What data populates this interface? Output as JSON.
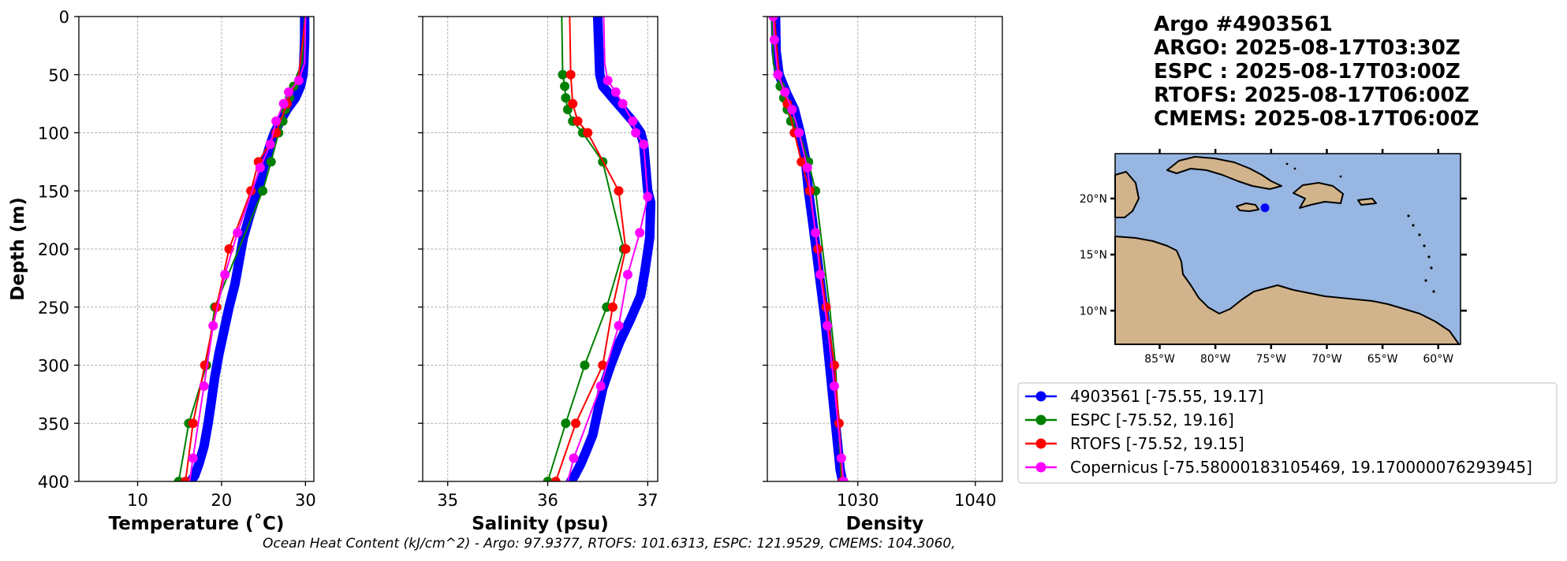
{
  "header": {
    "lines": [
      "Argo #4903561",
      "ARGO: 2025-08-17T03:30Z",
      "ESPC : 2025-08-17T03:00Z",
      "RTOFS: 2025-08-17T06:00Z",
      "CMEMS: 2025-08-17T06:00Z"
    ]
  },
  "footer": {
    "ohc_text": "Ocean Heat Content (kJ/cm^2) - Argo: 97.9377,  RTOFS: 101.6313,  ESPC: 121.9529,  CMEMS: 104.3060,"
  },
  "colors": {
    "argo": "#0000ff",
    "espc": "#008000",
    "rtofs": "#ff0000",
    "copernicus": "#ff00ff",
    "ocean": "#97b6e1",
    "land": "#d2b48c"
  },
  "chart_data": [
    {
      "type": "line",
      "id": "temperature",
      "xlabel": "Temperature (˚C)",
      "ylabel": "Depth (m)",
      "xlim": [
        3,
        31
      ],
      "ylim": [
        400,
        0
      ],
      "xticks": [
        10,
        20,
        30
      ],
      "yticks": [
        0,
        50,
        100,
        150,
        200,
        250,
        300,
        350,
        400
      ],
      "grid": true,
      "series": [
        {
          "name": "argo",
          "color": "#0000ff",
          "dense": true,
          "x": [
            29.9,
            29.9,
            29.8,
            29.7,
            29.4,
            28.8,
            27.8,
            27.0,
            26.3,
            25.8,
            25.0,
            24.3,
            23.4,
            22.6,
            22.1,
            21.6,
            20.9,
            20.3,
            19.7,
            19.2,
            18.8,
            18.4,
            17.9,
            17.3,
            16.8,
            16.3
          ],
          "y": [
            0,
            20,
            40,
            50,
            60,
            70,
            80,
            90,
            100,
            110,
            130,
            150,
            170,
            190,
            210,
            230,
            250,
            270,
            290,
            310,
            330,
            350,
            370,
            385,
            395,
            400
          ]
        },
        {
          "name": "espc",
          "color": "#008000",
          "x": [
            29.9,
            29.6,
            29.0,
            28.6,
            28.1,
            27.6,
            27.3,
            26.8,
            25.9,
            24.9,
            19.2,
            18.2,
            16.1,
            14.9
          ],
          "y": [
            0,
            40,
            50,
            60,
            70,
            80,
            90,
            100,
            125,
            150,
            250,
            300,
            350,
            400
          ],
          "marker_idx": [
            3,
            4,
            5,
            6,
            7,
            8,
            9,
            10,
            11,
            12,
            13
          ]
        },
        {
          "name": "rtofs",
          "color": "#ff0000",
          "x": [
            30.0,
            29.2,
            27.8,
            26.5,
            24.4,
            23.5,
            20.9,
            19.4,
            18.0,
            16.6,
            15.7
          ],
          "y": [
            0,
            50,
            75,
            100,
            125,
            150,
            200,
            250,
            300,
            350,
            400
          ],
          "marker_idx": [
            2,
            3,
            4,
            5,
            6,
            7,
            8,
            9,
            10
          ]
        },
        {
          "name": "copernicus",
          "color": "#ff00ff",
          "x": [
            30.0,
            29.9,
            29.2,
            28.0,
            27.4,
            26.5,
            25.8,
            24.6,
            21.9,
            20.4,
            19.0,
            17.9,
            16.6,
            16.2
          ],
          "y": [
            0,
            40,
            55,
            65,
            75,
            90,
            110,
            130,
            186,
            222,
            266,
            318,
            380,
            400
          ],
          "marker_idx": [
            2,
            3,
            4,
            5,
            6,
            7,
            8,
            9,
            10,
            11,
            12
          ]
        }
      ]
    },
    {
      "type": "line",
      "id": "salinity",
      "xlabel": "Salinity (psu)",
      "xlim": [
        34.75,
        37.1
      ],
      "ylim": [
        400,
        0
      ],
      "xticks": [
        35,
        36,
        37
      ],
      "grid": true,
      "series": [
        {
          "name": "argo",
          "color": "#0000ff",
          "dense": true,
          "x": [
            36.5,
            36.51,
            36.52,
            36.55,
            36.65,
            36.75,
            36.85,
            36.93,
            36.96,
            36.98,
            37.0,
            37.03,
            37.02,
            36.97,
            36.93,
            36.83,
            36.72,
            36.63,
            36.55,
            36.5,
            36.45,
            36.38,
            36.33,
            36.27,
            36.23
          ],
          "y": [
            0,
            25,
            50,
            60,
            70,
            80,
            90,
            100,
            110,
            130,
            150,
            160,
            190,
            220,
            240,
            260,
            280,
            300,
            320,
            340,
            360,
            375,
            385,
            395,
            400
          ]
        },
        {
          "name": "espc",
          "color": "#008000",
          "x": [
            36.14,
            36.15,
            36.17,
            36.18,
            36.2,
            36.25,
            36.35,
            36.55,
            36.76,
            36.59,
            36.37,
            36.18,
            36.0
          ],
          "y": [
            0,
            50,
            60,
            70,
            80,
            90,
            100,
            125,
            200,
            250,
            300,
            350,
            400
          ],
          "marker_idx": [
            1,
            2,
            3,
            4,
            5,
            6,
            7,
            8,
            9,
            10,
            11,
            12
          ]
        },
        {
          "name": "rtofs",
          "color": "#ff0000",
          "x": [
            36.22,
            36.23,
            36.25,
            36.3,
            36.4,
            36.71,
            36.78,
            36.65,
            36.55,
            36.28,
            36.08
          ],
          "y": [
            0,
            50,
            75,
            90,
            100,
            150,
            200,
            250,
            300,
            350,
            400
          ],
          "marker_idx": [
            1,
            2,
            3,
            4,
            5,
            6,
            7,
            8,
            9,
            10
          ]
        },
        {
          "name": "copernicus",
          "color": "#ff00ff",
          "x": [
            36.56,
            36.57,
            36.6,
            36.68,
            36.75,
            36.85,
            36.88,
            36.96,
            37.0,
            36.92,
            36.8,
            36.71,
            36.53,
            36.26,
            36.2
          ],
          "y": [
            0,
            40,
            55,
            65,
            75,
            90,
            100,
            110,
            155,
            186,
            222,
            266,
            318,
            380,
            400
          ],
          "marker_idx": [
            2,
            3,
            4,
            5,
            6,
            7,
            8,
            9,
            10,
            11,
            12,
            13
          ]
        }
      ]
    },
    {
      "type": "line",
      "id": "density",
      "xlabel": "Density",
      "xlim": [
        1022.3,
        1042.3
      ],
      "ylim": [
        400,
        0
      ],
      "xticks": [
        1030,
        1040
      ],
      "grid": true,
      "series": [
        {
          "name": "argo",
          "color": "#0000ff",
          "dense": true,
          "x": [
            1023.0,
            1023.05,
            1023.3,
            1023.9,
            1024.6,
            1025.1,
            1025.5,
            1025.8,
            1026.2,
            1026.7,
            1027.2,
            1027.6,
            1027.9,
            1028.2,
            1028.5,
            1028.7
          ],
          "y": [
            0,
            30,
            50,
            65,
            80,
            100,
            120,
            150,
            180,
            220,
            260,
            300,
            330,
            360,
            390,
            400
          ]
        },
        {
          "name": "espc",
          "color": "#008000",
          "x": [
            1022.7,
            1022.8,
            1023.1,
            1023.4,
            1023.7,
            1024.0,
            1024.3,
            1025.0,
            1025.8,
            1026.4,
            1027.0,
            1027.6,
            1028.1,
            1028.6
          ],
          "y": [
            0,
            40,
            50,
            60,
            70,
            80,
            90,
            100,
            125,
            150,
            200,
            250,
            300,
            400
          ],
          "marker_idx": [
            3,
            4,
            5,
            6,
            7,
            8,
            9
          ]
        },
        {
          "name": "rtofs",
          "color": "#ff0000",
          "x": [
            1022.9,
            1023.3,
            1024.0,
            1024.6,
            1025.2,
            1025.9,
            1026.6,
            1027.3,
            1028.0,
            1028.4,
            1028.7
          ],
          "y": [
            0,
            50,
            75,
            100,
            125,
            150,
            200,
            250,
            300,
            350,
            400
          ],
          "marker_idx": [
            2,
            3,
            4,
            5,
            6,
            7,
            8,
            9,
            10
          ]
        },
        {
          "name": "copernicus",
          "color": "#ff00ff",
          "x": [
            1022.8,
            1022.9,
            1023.2,
            1023.8,
            1024.4,
            1025.0,
            1025.7,
            1026.4,
            1026.8,
            1027.4,
            1028.0,
            1028.6,
            1028.8
          ],
          "y": [
            0,
            20,
            50,
            65,
            80,
            100,
            130,
            186,
            222,
            266,
            318,
            380,
            400
          ],
          "marker_idx": [
            0,
            1,
            2,
            3,
            4,
            5,
            6,
            7,
            8,
            9,
            10,
            11,
            12
          ]
        }
      ]
    },
    {
      "type": "map",
      "id": "location-map",
      "lon_ticks": [
        "85°W",
        "80°W",
        "75°W",
        "70°W",
        "65°W",
        "60°W"
      ],
      "lat_ticks": [
        "20°N",
        "15°N",
        "10°N"
      ],
      "lon_range": [
        -89,
        -58
      ],
      "lat_range": [
        7,
        24
      ],
      "lon_tick_values": [
        -85,
        -80,
        -75,
        -70,
        -65,
        -60
      ],
      "lat_tick_values": [
        20,
        15,
        10
      ],
      "float_position": [
        -75.55,
        19.17
      ]
    }
  ],
  "legend": {
    "placement": "below-map",
    "items": [
      {
        "label": "4903561 [-75.55, 19.17]",
        "color": "#0000ff"
      },
      {
        "label": "ESPC [-75.52, 19.16]",
        "color": "#008000"
      },
      {
        "label": "RTOFS [-75.52, 19.15]",
        "color": "#ff0000"
      },
      {
        "label": "Copernicus [-75.58000183105469, 19.170000076293945]",
        "color": "#ff00ff"
      }
    ]
  }
}
